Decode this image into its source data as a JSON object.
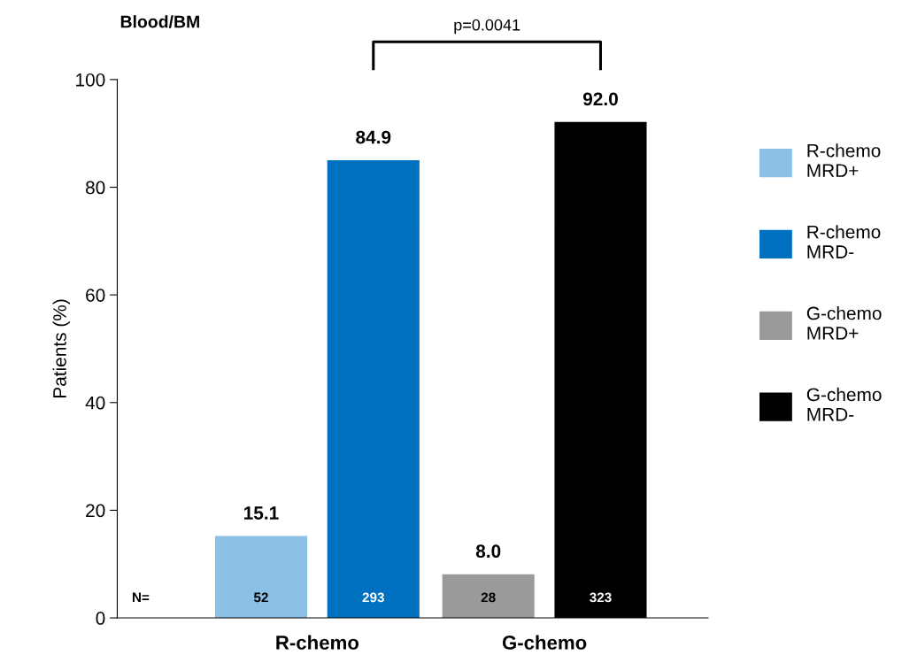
{
  "chart_data": {
    "type": "bar",
    "title": "Blood/BM",
    "ylabel": "Patients (%)",
    "categories": [
      "R-chemo",
      "G-chemo"
    ],
    "series": [
      {
        "name": "R-chemo\nMRD+",
        "color": "#8cc0e6",
        "values": [
          15.1,
          null
        ],
        "value_labels": [
          "15.1",
          null
        ]
      },
      {
        "name": "R-chemo\nMRD-",
        "color": "#0070c0",
        "values": [
          84.9,
          null
        ],
        "value_labels": [
          "84.9",
          null
        ]
      },
      {
        "name": "G-chemo\nMRD+",
        "color": "#9a9a9a",
        "values": [
          null,
          8.0
        ],
        "value_labels": [
          null,
          "8.0"
        ]
      },
      {
        "name": "G-chemo\nMRD-",
        "color": "#000000",
        "values": [
          null,
          92.0
        ],
        "value_labels": [
          null,
          "92.0"
        ]
      }
    ],
    "ylim": [
      0,
      100
    ],
    "yticks": [
      0,
      20,
      40,
      60,
      80,
      100
    ],
    "legend": "right",
    "grid": false,
    "annotations": [
      "N=",
      "52",
      "293",
      "28",
      "323",
      "p=0.0041"
    ]
  }
}
